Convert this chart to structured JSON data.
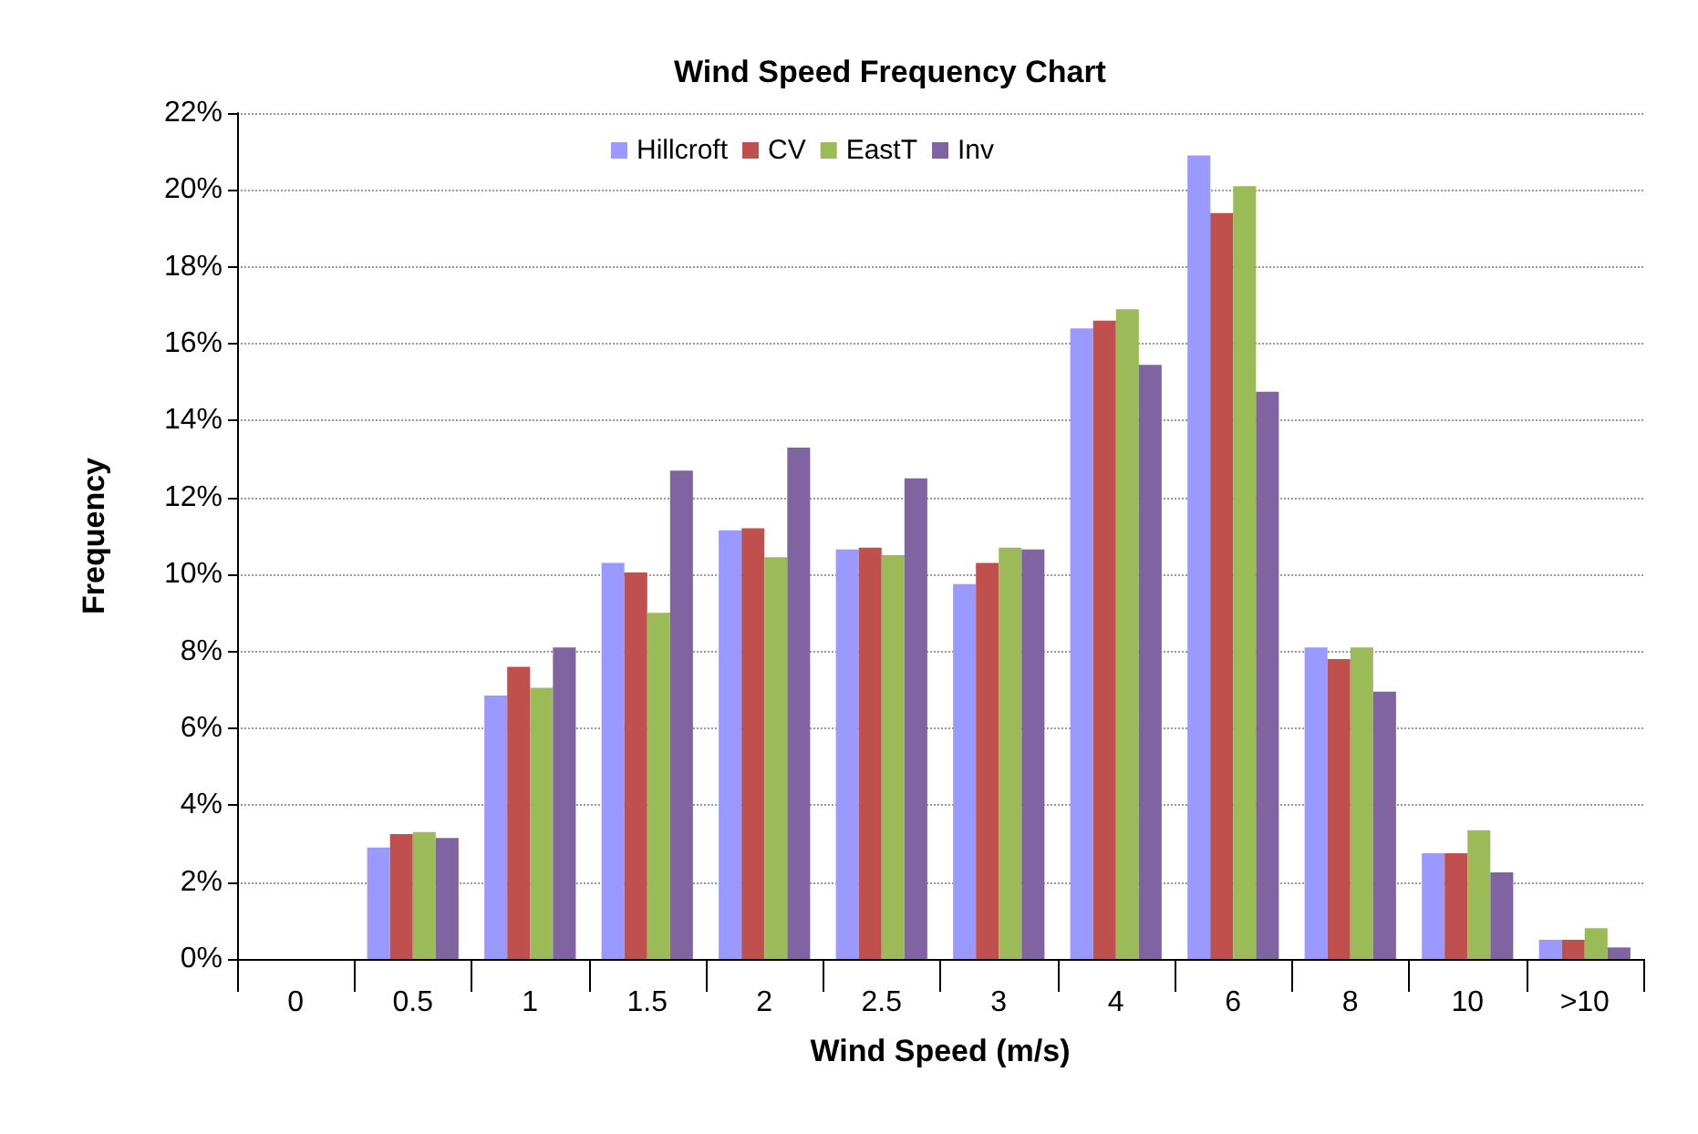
{
  "chart_data": {
    "type": "bar",
    "title": "Wind Speed Frequency Chart",
    "xlabel": "Wind Speed (m/s)",
    "ylabel": "Frequency",
    "categories": [
      "0",
      "0.5",
      "1",
      "1.5",
      "2",
      "2.5",
      "3",
      "4",
      "6",
      "8",
      "10",
      ">10"
    ],
    "series": [
      {
        "name": "Hillcroft",
        "color": "#9999ff",
        "values": [
          0,
          2.9,
          6.85,
          10.3,
          11.15,
          10.65,
          9.75,
          16.4,
          20.9,
          8.1,
          2.75,
          0.5
        ]
      },
      {
        "name": "CV",
        "color": "#c0504d",
        "values": [
          0,
          3.25,
          7.6,
          10.05,
          11.2,
          10.7,
          10.3,
          16.6,
          19.4,
          7.8,
          2.75,
          0.5
        ]
      },
      {
        "name": "EastT",
        "color": "#9bbb59",
        "values": [
          0,
          3.3,
          7.05,
          9.0,
          10.45,
          10.5,
          10.7,
          16.9,
          20.1,
          8.1,
          3.35,
          0.8
        ]
      },
      {
        "name": "Inv",
        "color": "#8064a2",
        "values": [
          0,
          3.15,
          8.1,
          12.7,
          13.3,
          12.5,
          10.65,
          15.45,
          14.75,
          6.95,
          2.25,
          0.3
        ]
      }
    ],
    "ylim": [
      0,
      22
    ],
    "yticks": [
      {
        "value": 0,
        "label": "0%"
      },
      {
        "value": 2,
        "label": "2%"
      },
      {
        "value": 4,
        "label": "4%"
      },
      {
        "value": 6,
        "label": "6%"
      },
      {
        "value": 8,
        "label": "8%"
      },
      {
        "value": 10,
        "label": "10%"
      },
      {
        "value": 12,
        "label": "12%"
      },
      {
        "value": 14,
        "label": "14%"
      },
      {
        "value": 16,
        "label": "16%"
      },
      {
        "value": 18,
        "label": "18%"
      },
      {
        "value": 20,
        "label": "20%"
      },
      {
        "value": 22,
        "label": "22%"
      }
    ],
    "grid": "y",
    "legend": "top"
  }
}
